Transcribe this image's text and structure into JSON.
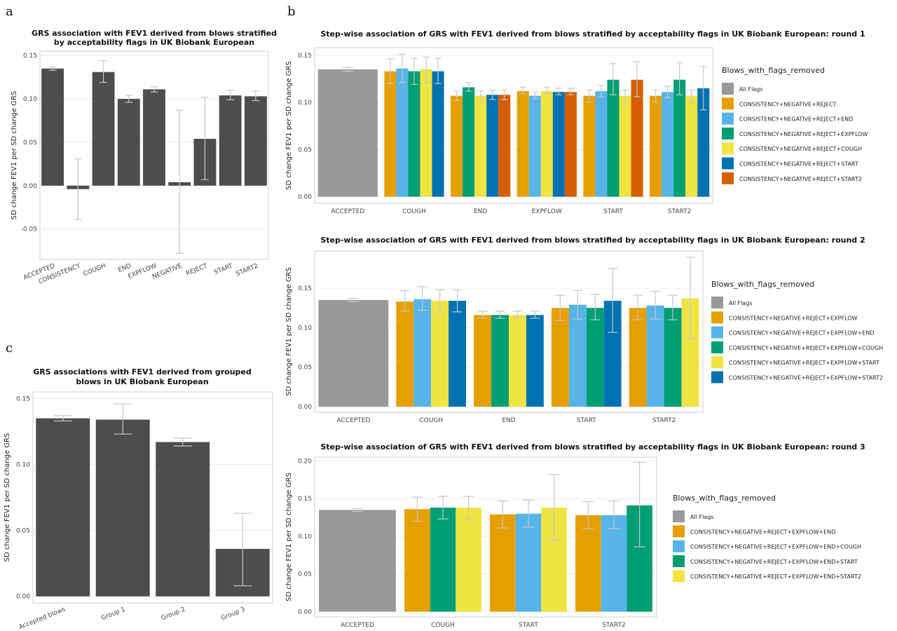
{
  "panel_labels": [
    "a",
    "b",
    "c"
  ],
  "colors": {
    "dark_bar": "#4d4d4d",
    "all_flags": "#999999",
    "palette": [
      "#E69F00",
      "#56B4E9",
      "#009E73",
      "#F0E442",
      "#0072B2",
      "#D55E00"
    ]
  },
  "chart_data": [
    {
      "id": "a",
      "type": "bar",
      "title": "GRS association with FEV1 derived from blows stratified",
      "subtitle": "by acceptability flags in UK Biobank European",
      "ylabel": "SD change FEV1 per SD change GRS",
      "xlabel": "",
      "ylim": [
        -0.085,
        0.155
      ],
      "yticks": [
        -0.05,
        0.0,
        0.05,
        0.1,
        0.15
      ],
      "ytick_labels": [
        "-0.05",
        "0.00",
        "0.05",
        "0.10",
        "0.15"
      ],
      "grid": true,
      "categories": [
        "ACCEPTED",
        "CONSISTENCY",
        "COUGH",
        "END",
        "EXPFLOW",
        "NEGATIVE",
        "REJECT",
        "START",
        "START2"
      ],
      "values": [
        0.135,
        -0.004,
        0.131,
        0.1,
        0.111,
        0.004,
        0.054,
        0.104,
        0.103
      ],
      "err_low": [
        0.133,
        -0.039,
        0.119,
        0.096,
        0.108,
        -0.078,
        0.007,
        0.099,
        0.098
      ],
      "err_high": [
        0.137,
        0.031,
        0.144,
        0.104,
        0.114,
        0.087,
        0.102,
        0.11,
        0.109
      ]
    },
    {
      "id": "b1",
      "type": "bar",
      "title": "Step-wise association of GRS with FEV1 derived from blows stratified by acceptability flags in UK Biobank European: round 1",
      "ylabel": "SD change FEV1 per SD change GRS",
      "xlabel": "",
      "ylim": [
        -0.007,
        0.158
      ],
      "yticks": [
        0.0,
        0.05,
        0.1,
        0.15
      ],
      "ytick_labels": [
        "0.00",
        "0.05",
        "0.10",
        "0.15"
      ],
      "grid": true,
      "legend_title": "Blows_with_flags_removed",
      "legend_position": "right",
      "series": [
        {
          "name": "All Flags"
        },
        {
          "name": "CONSISTENCY+NEGATIVE+REJECT"
        },
        {
          "name": "CONSISTENCY+NEGATIVE+REJECT+END"
        },
        {
          "name": "CONSISTENCY+NEGATIVE+REJECT+EXPFLOW"
        },
        {
          "name": "CONSISTENCY+NEGATIVE+REJECT+COUGH"
        },
        {
          "name": "CONSISTENCY+NEGATIVE+REJECT+START"
        },
        {
          "name": "CONSISTENCY+NEGATIVE+REJECT+START2"
        }
      ],
      "groups": [
        {
          "label": "ACCEPTED",
          "bars": [
            {
              "s": 0,
              "v": 0.135,
              "lo": 0.133,
              "hi": 0.137
            }
          ]
        },
        {
          "label": "COUGH",
          "bars": [
            {
              "s": 1,
              "v": 0.133,
              "lo": 0.12,
              "hi": 0.146
            },
            {
              "s": 2,
              "v": 0.136,
              "lo": 0.121,
              "hi": 0.151
            },
            {
              "s": 3,
              "v": 0.133,
              "lo": 0.119,
              "hi": 0.147
            },
            {
              "s": 4,
              "v": 0.135,
              "lo": 0.121,
              "hi": 0.148
            },
            {
              "s": 5,
              "v": 0.133,
              "lo": 0.12,
              "hi": 0.147
            }
          ]
        },
        {
          "label": "END",
          "bars": [
            {
              "s": 1,
              "v": 0.107,
              "lo": 0.102,
              "hi": 0.112
            },
            {
              "s": 3,
              "v": 0.116,
              "lo": 0.112,
              "hi": 0.121
            },
            {
              "s": 4,
              "v": 0.107,
              "lo": 0.102,
              "hi": 0.112
            },
            {
              "s": 5,
              "v": 0.108,
              "lo": 0.103,
              "hi": 0.113
            },
            {
              "s": 6,
              "v": 0.108,
              "lo": 0.103,
              "hi": 0.113
            }
          ]
        },
        {
          "label": "EXPFLOW",
          "bars": [
            {
              "s": 1,
              "v": 0.112,
              "lo": 0.109,
              "hi": 0.116
            },
            {
              "s": 2,
              "v": 0.107,
              "lo": 0.104,
              "hi": 0.111
            },
            {
              "s": 4,
              "v": 0.112,
              "lo": 0.109,
              "hi": 0.116
            },
            {
              "s": 5,
              "v": 0.111,
              "lo": 0.108,
              "hi": 0.115
            },
            {
              "s": 6,
              "v": 0.111,
              "lo": 0.108,
              "hi": 0.115
            }
          ]
        },
        {
          "label": "START",
          "bars": [
            {
              "s": 1,
              "v": 0.107,
              "lo": 0.1,
              "hi": 0.113
            },
            {
              "s": 2,
              "v": 0.112,
              "lo": 0.106,
              "hi": 0.118
            },
            {
              "s": 3,
              "v": 0.124,
              "lo": 0.108,
              "hi": 0.141
            },
            {
              "s": 4,
              "v": 0.107,
              "lo": 0.1,
              "hi": 0.113
            },
            {
              "s": 6,
              "v": 0.124,
              "lo": 0.106,
              "hi": 0.143
            }
          ]
        },
        {
          "label": "START2",
          "bars": [
            {
              "s": 1,
              "v": 0.107,
              "lo": 0.1,
              "hi": 0.113
            },
            {
              "s": 2,
              "v": 0.111,
              "lo": 0.105,
              "hi": 0.117
            },
            {
              "s": 3,
              "v": 0.124,
              "lo": 0.108,
              "hi": 0.142
            },
            {
              "s": 4,
              "v": 0.107,
              "lo": 0.1,
              "hi": 0.113
            },
            {
              "s": 5,
              "v": 0.115,
              "lo": 0.092,
              "hi": 0.138
            }
          ]
        }
      ]
    },
    {
      "id": "b2",
      "type": "bar",
      "title": "Step-wise association of GRS with FEV1 derived from blows stratified by acceptability flags in UK Biobank European: round 2",
      "ylabel": "SD change FEV1 per SD change GRS",
      "xlabel": "",
      "ylim": [
        -0.007,
        0.197
      ],
      "yticks": [
        0.0,
        0.05,
        0.1,
        0.15
      ],
      "ytick_labels": [
        "0.00",
        "0.05",
        "0.10",
        "0.15"
      ],
      "grid": true,
      "legend_title": "Blows_with_flags_removed",
      "legend_position": "right",
      "series": [
        {
          "name": "All Flags"
        },
        {
          "name": "CONSISTENCY+NEGATIVE+REJECT+EXPFLOW"
        },
        {
          "name": "CONSISTENCY+NEGATIVE+REJECT+EXPFLOW+END"
        },
        {
          "name": "CONSISTENCY+NEGATIVE+REJECT+EXPFLOW+COUGH"
        },
        {
          "name": "CONSISTENCY+NEGATIVE+REJECT+EXPFLOW+START"
        },
        {
          "name": "CONSISTENCY+NEGATIVE+REJECT+EXPFLOW+START2"
        }
      ],
      "groups": [
        {
          "label": "ACCEPTED",
          "bars": [
            {
              "s": 0,
              "v": 0.135,
              "lo": 0.133,
              "hi": 0.137
            }
          ]
        },
        {
          "label": "COUGH",
          "bars": [
            {
              "s": 1,
              "v": 0.133,
              "lo": 0.121,
              "hi": 0.147
            },
            {
              "s": 2,
              "v": 0.136,
              "lo": 0.122,
              "hi": 0.152
            },
            {
              "s": 4,
              "v": 0.134,
              "lo": 0.12,
              "hi": 0.148
            },
            {
              "s": 5,
              "v": 0.134,
              "lo": 0.12,
              "hi": 0.148
            }
          ]
        },
        {
          "label": "END",
          "bars": [
            {
              "s": 1,
              "v": 0.116,
              "lo": 0.112,
              "hi": 0.121
            },
            {
              "s": 3,
              "v": 0.116,
              "lo": 0.112,
              "hi": 0.121
            },
            {
              "s": 4,
              "v": 0.116,
              "lo": 0.112,
              "hi": 0.121
            },
            {
              "s": 5,
              "v": 0.116,
              "lo": 0.112,
              "hi": 0.121
            }
          ]
        },
        {
          "label": "START",
          "bars": [
            {
              "s": 1,
              "v": 0.125,
              "lo": 0.109,
              "hi": 0.141
            },
            {
              "s": 2,
              "v": 0.129,
              "lo": 0.111,
              "hi": 0.147
            },
            {
              "s": 3,
              "v": 0.125,
              "lo": 0.11,
              "hi": 0.142
            },
            {
              "s": 5,
              "v": 0.134,
              "lo": 0.094,
              "hi": 0.175
            }
          ]
        },
        {
          "label": "START2",
          "bars": [
            {
              "s": 1,
              "v": 0.125,
              "lo": 0.11,
              "hi": 0.141
            },
            {
              "s": 2,
              "v": 0.128,
              "lo": 0.111,
              "hi": 0.146
            },
            {
              "s": 3,
              "v": 0.125,
              "lo": 0.11,
              "hi": 0.141
            },
            {
              "s": 4,
              "v": 0.137,
              "lo": 0.086,
              "hi": 0.189
            }
          ]
        }
      ]
    },
    {
      "id": "b3",
      "type": "bar",
      "title": "Step-wise association of GRS with FEV1 derived from blows stratified by acceptability flags in UK Biobank European: round 3",
      "ylabel": "SD change FEV1 per SD change GRS",
      "xlabel": "",
      "ylim": [
        -0.007,
        0.205
      ],
      "yticks": [
        0.0,
        0.05,
        0.1,
        0.15,
        0.2
      ],
      "ytick_labels": [
        "0.00",
        "0.05",
        "0.10",
        "0.15",
        "0.20"
      ],
      "grid": true,
      "legend_title": "Blows_with_flags_removed",
      "legend_position": "right",
      "series": [
        {
          "name": "All Flags"
        },
        {
          "name": "CONSISTENCY+NEGATIVE+REJECT+EXPFLOW+END"
        },
        {
          "name": "CONSISTENCY+NEGATIVE+REJECT+EXPFLOW+END+COUGH"
        },
        {
          "name": "CONSISTENCY+NEGATIVE+REJECT+EXPFLOW+END+START"
        },
        {
          "name": "CONSISTENCY+NEGATIVE+REJECT+EXPFLOW+END+START2"
        }
      ],
      "groups": [
        {
          "label": "ACCEPTED",
          "bars": [
            {
              "s": 0,
              "v": 0.135,
              "lo": 0.133,
              "hi": 0.137
            }
          ]
        },
        {
          "label": "COUGH",
          "bars": [
            {
              "s": 1,
              "v": 0.136,
              "lo": 0.12,
              "hi": 0.152
            },
            {
              "s": 3,
              "v": 0.138,
              "lo": 0.123,
              "hi": 0.153
            },
            {
              "s": 4,
              "v": 0.138,
              "lo": 0.123,
              "hi": 0.153
            }
          ]
        },
        {
          "label": "START",
          "bars": [
            {
              "s": 1,
              "v": 0.129,
              "lo": 0.111,
              "hi": 0.147
            },
            {
              "s": 2,
              "v": 0.13,
              "lo": 0.112,
              "hi": 0.148
            },
            {
              "s": 4,
              "v": 0.138,
              "lo": 0.095,
              "hi": 0.182
            }
          ]
        },
        {
          "label": "START2",
          "bars": [
            {
              "s": 1,
              "v": 0.128,
              "lo": 0.11,
              "hi": 0.146
            },
            {
              "s": 2,
              "v": 0.128,
              "lo": 0.11,
              "hi": 0.147
            },
            {
              "s": 3,
              "v": 0.141,
              "lo": 0.086,
              "hi": 0.198
            }
          ]
        }
      ]
    },
    {
      "id": "c",
      "type": "bar",
      "title": "GRS associations with FEV1 derived from grouped",
      "subtitle": "blows in UK Biobank European",
      "ylabel": "SD change FEV1 per SD change GRS",
      "xlabel": "",
      "ylim": [
        -0.005,
        0.155
      ],
      "yticks": [
        0.0,
        0.05,
        0.1,
        0.15
      ],
      "ytick_labels": [
        "0.00",
        "0.05",
        "0.10",
        "0.15"
      ],
      "grid": true,
      "categories": [
        "Accepted blows",
        "Group 1",
        "Group 2",
        "Group 3"
      ],
      "values": [
        0.135,
        0.134,
        0.117,
        0.036
      ],
      "err_low": [
        0.133,
        0.123,
        0.114,
        0.008
      ],
      "err_high": [
        0.137,
        0.146,
        0.12,
        0.063
      ]
    }
  ]
}
